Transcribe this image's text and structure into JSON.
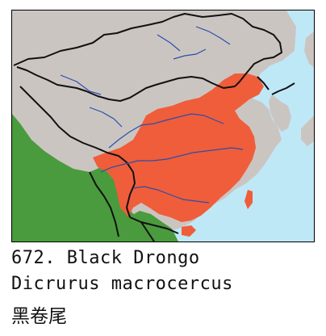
{
  "species": {
    "number_and_common_name": "672. Black Drongo",
    "scientific_name": "Dicrurus macrocercus",
    "chinese_name": "黑卷尾"
  },
  "map": {
    "colors": {
      "sea": "#bfe8f7",
      "land_outside": "#cbc5c2",
      "range_breeding": "#f05d3a",
      "range_resident": "#4a9b3d",
      "border": "#111111",
      "river": "#2a4fa8"
    }
  }
}
